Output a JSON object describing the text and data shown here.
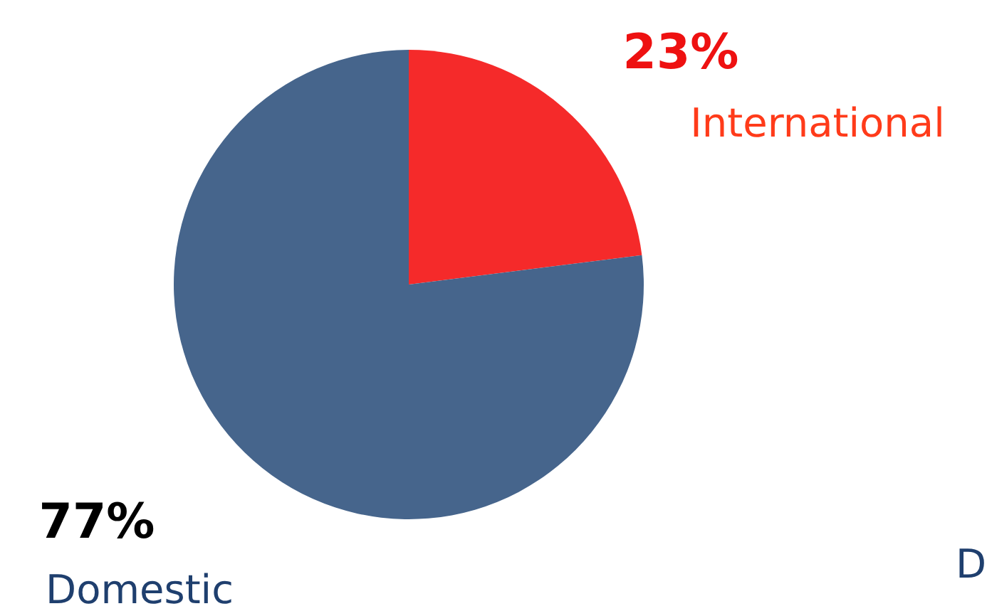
{
  "chart_data": {
    "type": "pie",
    "categories": [
      "International",
      "Domestic"
    ],
    "values": [
      23,
      77
    ],
    "colors": [
      "#f52a2a",
      "#46658c"
    ],
    "value_labels": [
      "23%",
      "77%"
    ],
    "annotations": [
      "D"
    ]
  }
}
